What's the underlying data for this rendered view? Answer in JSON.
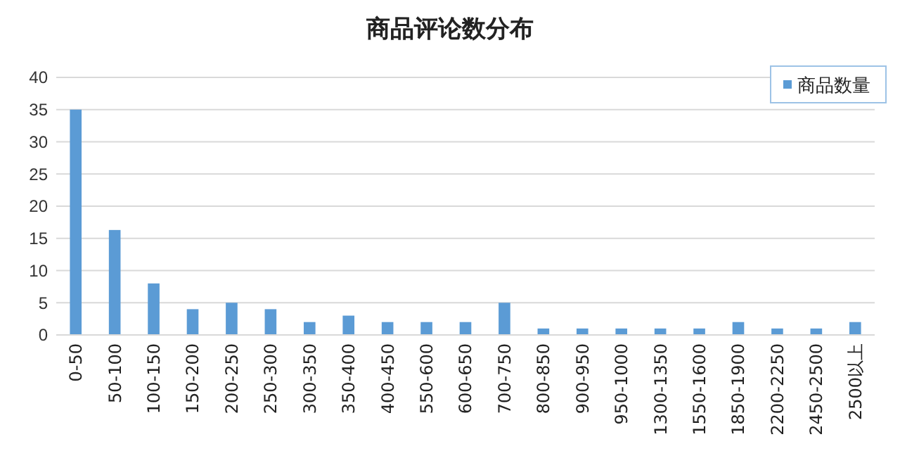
{
  "chart_data": {
    "type": "bar",
    "title": "商品评论数分布",
    "categories": [
      "0-50",
      "50-100",
      "100-150",
      "150-200",
      "200-250",
      "250-300",
      "300-350",
      "350-400",
      "400-450",
      "550-600",
      "600-650",
      "700-750",
      "800-850",
      "900-950",
      "950-1000",
      "1300-1350",
      "1550-1600",
      "1850-1900",
      "2200-2250",
      "2450-2500",
      "2500以上"
    ],
    "series": [
      {
        "name": "商品数量",
        "color": "#5b9bd5",
        "values": [
          35,
          16.3,
          8,
          4,
          5,
          4,
          2,
          3,
          2,
          2,
          2,
          5,
          1,
          1,
          1,
          1,
          1,
          2,
          1,
          1,
          2
        ]
      }
    ],
    "ylim": [
      0,
      40
    ],
    "yticks": [
      0,
      5,
      10,
      15,
      20,
      25,
      30,
      35,
      40
    ],
    "grid": "y",
    "legend": "top right"
  }
}
